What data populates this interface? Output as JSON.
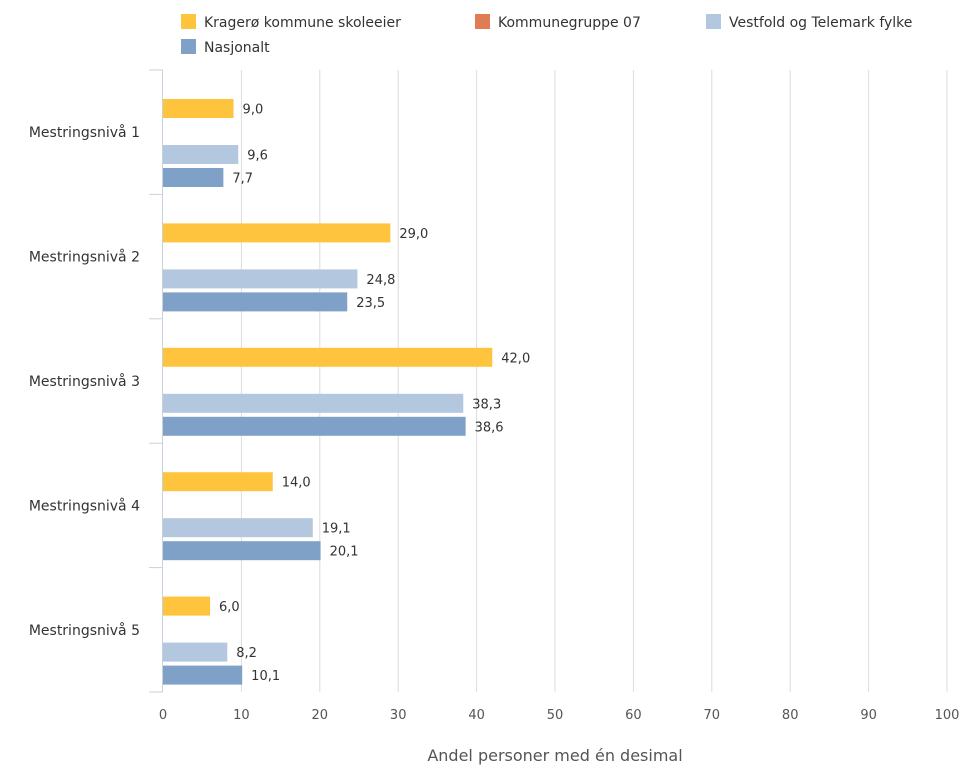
{
  "chart_data": {
    "type": "bar",
    "orientation": "horizontal",
    "categories": [
      "Mestringsnivå 1",
      "Mestringsnivå 2",
      "Mestringsnivå 3",
      "Mestringsnivå 4",
      "Mestringsnivå 5"
    ],
    "series": [
      {
        "name": "Kragerø kommune skoleeier",
        "color": "#FFC43D",
        "values": [
          9.0,
          29.0,
          42.0,
          14.0,
          6.0
        ],
        "labels": [
          "9,0",
          "29,0",
          "42,0",
          "14,0",
          "6,0"
        ]
      },
      {
        "name": "Kommunegruppe 07",
        "color": "#E07B53",
        "values": [
          null,
          null,
          null,
          null,
          null
        ],
        "labels": [
          "",
          "",
          "",
          "",
          ""
        ]
      },
      {
        "name": "Vestfold og Telemark fylke",
        "color": "#B3C7DE",
        "values": [
          9.6,
          24.8,
          38.3,
          19.1,
          8.2
        ],
        "labels": [
          "9,6",
          "24,8",
          "38,3",
          "19,1",
          "8,2"
        ]
      },
      {
        "name": "Nasjonalt",
        "color": "#7FA1C8",
        "values": [
          7.7,
          23.5,
          38.6,
          20.1,
          10.1
        ],
        "labels": [
          "7,7",
          "23,5",
          "38,6",
          "20,1",
          "10,1"
        ]
      }
    ],
    "xlabel": "Andel personer med én desimal",
    "xlim": [
      0,
      100
    ],
    "xticks": [
      0,
      10,
      20,
      30,
      40,
      50,
      60,
      70,
      80,
      90,
      100
    ],
    "grid": true,
    "legend": "top"
  }
}
